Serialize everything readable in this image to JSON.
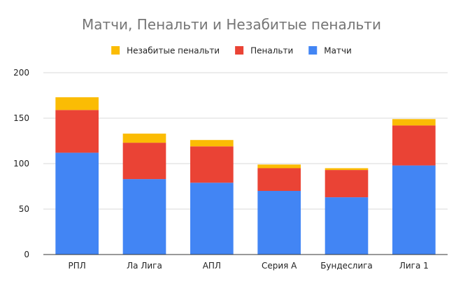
{
  "chart_data": {
    "type": "bar",
    "stacked": true,
    "title": "Матчи, Пенальти и Незабитые пенальти",
    "categories": [
      "РПЛ",
      "Ла Лига",
      "АПЛ",
      "Серия А",
      "Бундеслига",
      "Лига 1"
    ],
    "series": [
      {
        "name": "Матчи",
        "color": "#4285f4",
        "values": [
          112,
          83,
          79,
          70,
          63,
          98
        ]
      },
      {
        "name": "Пенальти",
        "color": "#ea4335",
        "values": [
          47,
          40,
          40,
          25,
          30,
          44
        ]
      },
      {
        "name": "Незабитые пенальти",
        "color": "#fbbc04",
        "values": [
          14,
          10,
          7,
          4,
          2,
          7
        ]
      }
    ],
    "legend_order": [
      2,
      1,
      0
    ],
    "legend_position": "top",
    "ylim": [
      0,
      200
    ],
    "yticks": [
      0,
      50,
      100,
      150,
      200
    ],
    "grid": true,
    "xlabel": "",
    "ylabel": ""
  }
}
